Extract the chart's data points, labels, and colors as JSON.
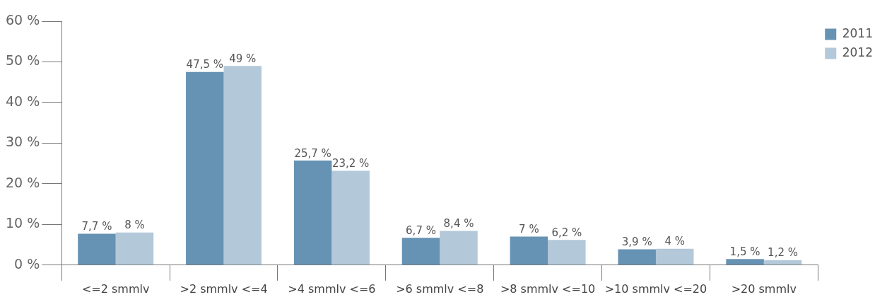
{
  "chart_data": {
    "type": "bar",
    "categories": [
      "<=2 smmlv",
      ">2 smmlv <=4",
      ">4 smmlv <=6",
      ">6 smmlv <=8",
      ">8 smmlv <=10",
      ">10 smmlv <=20",
      ">20 smmlv"
    ],
    "series": [
      {
        "name": "2011",
        "color": "#6692b3",
        "values": [
          7.7,
          47.5,
          25.7,
          6.7,
          7,
          3.9,
          1.5
        ],
        "value_labels": [
          "7,7 %",
          "47,5 %",
          "25,7 %",
          "6,7 %",
          "7 %",
          "3,9 %",
          "1,5 %"
        ]
      },
      {
        "name": "2012",
        "color": "#b3c8d9",
        "values": [
          8,
          49,
          23.2,
          8.4,
          6.2,
          4,
          1.2
        ],
        "value_labels": [
          "8 %",
          "49 %",
          "23,2 %",
          "8,4 %",
          "6,2 %",
          "4 %",
          "1,2 %"
        ]
      }
    ],
    "ylim": [
      0,
      60
    ],
    "yticks": [
      {
        "value": 0,
        "label": "0 %"
      },
      {
        "value": 10,
        "label": "10 %"
      },
      {
        "value": 20,
        "label": "20 %"
      },
      {
        "value": 30,
        "label": "30 %"
      },
      {
        "value": 40,
        "label": "40 %"
      },
      {
        "value": 50,
        "label": "50 %"
      },
      {
        "value": 60,
        "label": "60 %"
      }
    ],
    "grid": false,
    "legend": "top right"
  }
}
